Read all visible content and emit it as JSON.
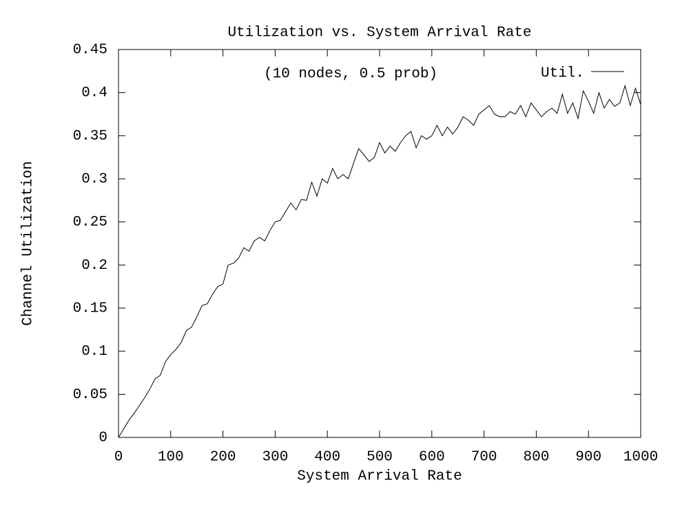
{
  "chart_data": {
    "type": "line",
    "title": "Utilization vs. System Arrival Rate",
    "xlabel": "System Arrival Rate",
    "ylabel": "Channel Utilization",
    "annotation": "(10 nodes, 0.5 prob)",
    "x": [
      0,
      10,
      20,
      30,
      40,
      50,
      60,
      70,
      80,
      90,
      100,
      110,
      120,
      130,
      140,
      150,
      160,
      170,
      180,
      190,
      200,
      210,
      220,
      230,
      240,
      250,
      260,
      270,
      280,
      290,
      300,
      310,
      320,
      330,
      340,
      350,
      360,
      370,
      380,
      390,
      400,
      410,
      420,
      430,
      440,
      450,
      460,
      470,
      480,
      490,
      500,
      510,
      520,
      530,
      540,
      550,
      560,
      570,
      580,
      590,
      600,
      610,
      620,
      630,
      640,
      650,
      660,
      670,
      680,
      690,
      700,
      710,
      720,
      730,
      740,
      750,
      760,
      770,
      780,
      790,
      800,
      810,
      820,
      830,
      840,
      850,
      860,
      870,
      880,
      890,
      900,
      910,
      920,
      930,
      940,
      950,
      960,
      970,
      980,
      990,
      1000
    ],
    "series": [
      {
        "name": "Util.",
        "color": "#000000",
        "values": [
          0,
          0.01,
          0.02,
          0.028,
          0.037,
          0.046,
          0.056,
          0.068,
          0.072,
          0.088,
          0.096,
          0.102,
          0.11,
          0.124,
          0.128,
          0.14,
          0.153,
          0.155,
          0.166,
          0.175,
          0.178,
          0.2,
          0.202,
          0.208,
          0.22,
          0.216,
          0.228,
          0.232,
          0.228,
          0.24,
          0.25,
          0.252,
          0.262,
          0.272,
          0.264,
          0.276,
          0.275,
          0.296,
          0.28,
          0.3,
          0.295,
          0.312,
          0.3,
          0.305,
          0.3,
          0.318,
          0.335,
          0.328,
          0.32,
          0.325,
          0.342,
          0.33,
          0.338,
          0.332,
          0.342,
          0.35,
          0.355,
          0.336,
          0.35,
          0.346,
          0.35,
          0.362,
          0.35,
          0.36,
          0.352,
          0.36,
          0.372,
          0.368,
          0.362,
          0.375,
          0.38,
          0.385,
          0.375,
          0.372,
          0.372,
          0.378,
          0.375,
          0.385,
          0.372,
          0.388,
          0.38,
          0.372,
          0.378,
          0.382,
          0.376,
          0.398,
          0.376,
          0.388,
          0.37,
          0.402,
          0.39,
          0.376,
          0.4,
          0.382,
          0.392,
          0.384,
          0.388,
          0.408,
          0.385,
          0.405,
          0.386
        ]
      }
    ],
    "xlim": [
      0,
      1000
    ],
    "xticks": [
      0,
      100,
      200,
      300,
      400,
      500,
      600,
      700,
      800,
      900,
      1000
    ],
    "ylim": [
      0,
      0.45
    ],
    "yticks": [
      0,
      0.05,
      0.1,
      0.15,
      0.2,
      0.25,
      0.3,
      0.35,
      0.4,
      0.45
    ],
    "legend": "top-right"
  }
}
